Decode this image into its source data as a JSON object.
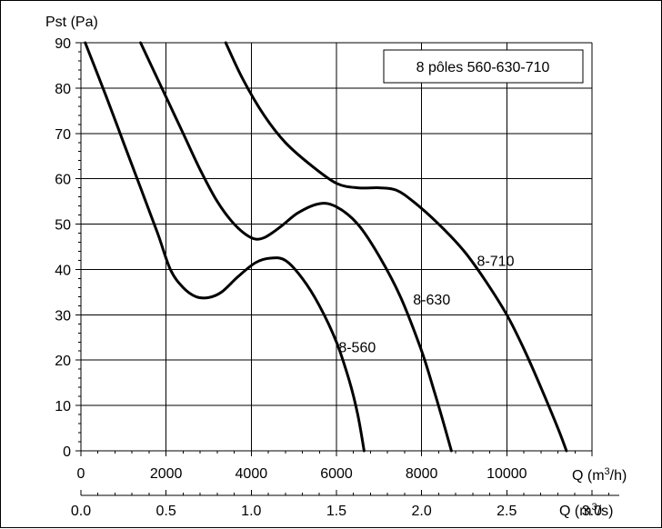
{
  "chart_data": {
    "type": "line",
    "title": "8 pôles 560-630-710",
    "ylabel": "Pst (Pa)",
    "xlabel": "Q (m³/h)",
    "xlabel_parts": {
      "prefix": "Q (m",
      "sup": "3",
      "suffix": "/h)"
    },
    "x2label_parts": {
      "prefix": "Q (m",
      "sup": "3",
      "suffix": "/s)"
    },
    "xlim": [
      0,
      12000
    ],
    "ylim": [
      0,
      90
    ],
    "x_ticks": [
      "0",
      "2000",
      "4000",
      "6000",
      "8000",
      "10000"
    ],
    "x2_ticks": [
      "0.0",
      "0.5",
      "1.0",
      "1.5",
      "2.0",
      "2.5",
      "3.0"
    ],
    "y_ticks": [
      "0",
      "10",
      "20",
      "30",
      "40",
      "50",
      "60",
      "70",
      "80",
      "90"
    ],
    "grid": true,
    "legend_position": "top-right",
    "series": [
      {
        "name": "8-560",
        "points": [
          [
            100,
            90
          ],
          [
            600,
            78
          ],
          [
            1000,
            68
          ],
          [
            1400,
            58
          ],
          [
            1800,
            48
          ],
          [
            2100,
            40
          ],
          [
            2400,
            36
          ],
          [
            2700,
            34
          ],
          [
            3000,
            33.8
          ],
          [
            3300,
            35
          ],
          [
            3700,
            38.5
          ],
          [
            4100,
            41.5
          ],
          [
            4450,
            42.5
          ],
          [
            4800,
            42
          ],
          [
            5200,
            38
          ],
          [
            5600,
            32
          ],
          [
            6000,
            24
          ],
          [
            6300,
            15.5
          ],
          [
            6500,
            8
          ],
          [
            6650,
            0
          ]
        ]
      },
      {
        "name": "8-630",
        "points": [
          [
            1400,
            90
          ],
          [
            1900,
            80
          ],
          [
            2400,
            70
          ],
          [
            2800,
            62
          ],
          [
            3200,
            55
          ],
          [
            3600,
            50
          ],
          [
            4000,
            47
          ],
          [
            4300,
            47
          ],
          [
            4700,
            49.5
          ],
          [
            5100,
            52.5
          ],
          [
            5600,
            54.5
          ],
          [
            6000,
            53.8
          ],
          [
            6500,
            50
          ],
          [
            7000,
            43
          ],
          [
            7500,
            34
          ],
          [
            8000,
            22
          ],
          [
            8300,
            13
          ],
          [
            8550,
            5
          ],
          [
            8700,
            0
          ]
        ]
      },
      {
        "name": "8-710",
        "points": [
          [
            3400,
            90
          ],
          [
            3800,
            82
          ],
          [
            4300,
            74
          ],
          [
            4800,
            68
          ],
          [
            5400,
            63
          ],
          [
            6000,
            59
          ],
          [
            6500,
            58
          ],
          [
            7000,
            58
          ],
          [
            7400,
            57.5
          ],
          [
            7800,
            55
          ],
          [
            8400,
            50
          ],
          [
            9000,
            44
          ],
          [
            9500,
            37.5
          ],
          [
            10000,
            30
          ],
          [
            10400,
            22.5
          ],
          [
            10800,
            14
          ],
          [
            11200,
            5
          ],
          [
            11400,
            0
          ]
        ]
      }
    ],
    "labels": [
      {
        "text": "8-560",
        "x": 6050,
        "y": 23
      },
      {
        "text": "8-630",
        "x": 7800,
        "y": 33.5
      },
      {
        "text": "8-710",
        "x": 9300,
        "y": 42
      }
    ]
  }
}
